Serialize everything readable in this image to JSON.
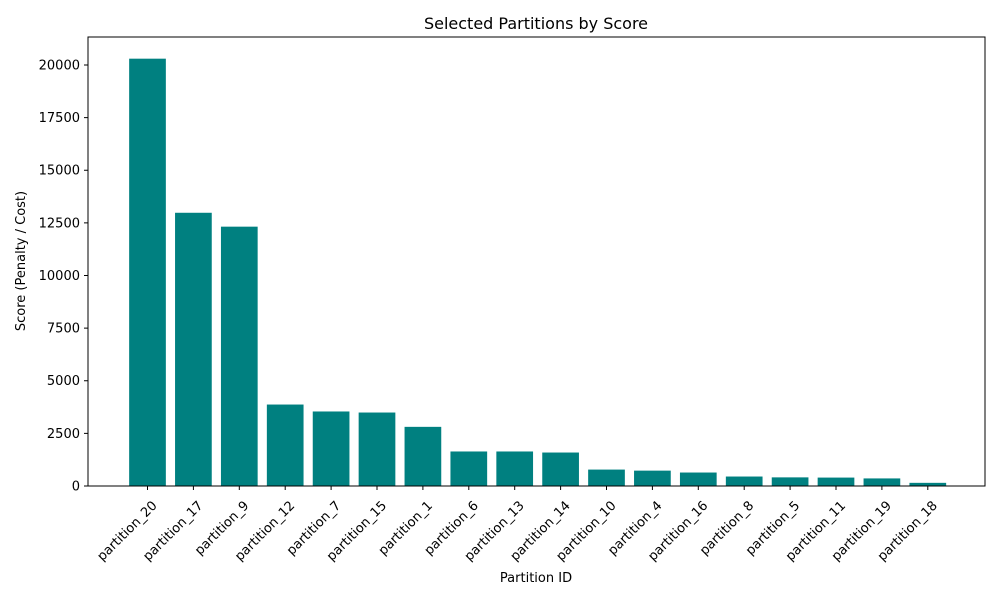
{
  "chart_data": {
    "type": "bar",
    "title": "Selected Partitions by Score",
    "xlabel": "Partition ID",
    "ylabel": "Score (Penalty / Cost)",
    "categories": [
      "partition_20",
      "partition_17",
      "partition_9",
      "partition_12",
      "partition_7",
      "partition_15",
      "partition_1",
      "partition_6",
      "partition_13",
      "partition_14",
      "partition_10",
      "partition_4",
      "partition_16",
      "partition_8",
      "partition_5",
      "partition_11",
      "partition_19",
      "partition_18"
    ],
    "values": [
      20300,
      12980,
      12320,
      3870,
      3540,
      3490,
      2810,
      1640,
      1640,
      1590,
      780,
      730,
      640,
      450,
      410,
      400,
      360,
      150
    ],
    "ylim": [
      0,
      21330
    ],
    "yticks": [
      0,
      2500,
      5000,
      7500,
      10000,
      12500,
      15000,
      17500,
      20000
    ],
    "ytick_labels": [
      "0",
      "2500",
      "5000",
      "7500",
      "10000",
      "12500",
      "15000",
      "17500",
      "20000"
    ],
    "bar_color": "#008080",
    "grid": false,
    "legend": "none"
  }
}
